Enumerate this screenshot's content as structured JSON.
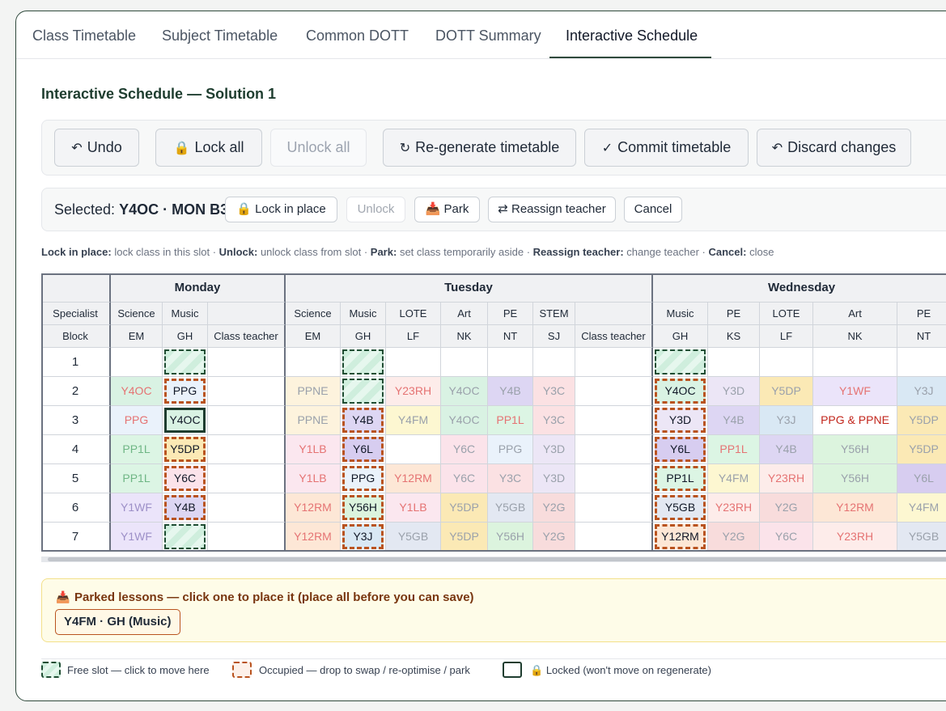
{
  "tabs": [
    "Class Timetable",
    "Subject Timetable",
    "Common DOTT",
    "DOTT Summary",
    "Interactive Schedule"
  ],
  "active_tab": "Interactive Schedule",
  "page_title": "Interactive Schedule — Solution 1",
  "toolbar": {
    "undo": "Undo",
    "undo_icon": "↶",
    "lock_all": "Lock all",
    "lock_icon": "🔒",
    "unlock_all": "Unlock all",
    "regenerate": "Re-generate timetable",
    "regenerate_icon": "↻",
    "commit": "Commit timetable",
    "commit_icon": "✓",
    "discard": "Discard changes",
    "discard_icon": "↶"
  },
  "selection": {
    "prefix": "Selected:",
    "value": "Y4OC · MON B3",
    "lock_in_place": "Lock in place",
    "unlock": "Unlock",
    "park": "Park",
    "park_icon": "📥",
    "reassign": "Reassign teacher",
    "reassign_icon": "⇄",
    "cancel": "Cancel"
  },
  "help": [
    {
      "term": "Lock in place:",
      "desc": "lock class in this slot"
    },
    {
      "term": "Unlock:",
      "desc": "unlock class from slot"
    },
    {
      "term": "Park:",
      "desc": "set class temporarily aside"
    },
    {
      "term": "Reassign teacher:",
      "desc": "change teacher"
    },
    {
      "term": "Cancel:",
      "desc": "close"
    }
  ],
  "grid": {
    "row_label_specialist": "Specialist",
    "row_label_block": "Block",
    "days": [
      {
        "name": "Monday",
        "columns": [
          {
            "subject": "Science",
            "teacher": "EM"
          },
          {
            "subject": "Music",
            "teacher": "GH"
          },
          {
            "subject": "",
            "teacher": "Class teacher"
          }
        ]
      },
      {
        "name": "Tuesday",
        "columns": [
          {
            "subject": "Science",
            "teacher": "EM"
          },
          {
            "subject": "Music",
            "teacher": "GH"
          },
          {
            "subject": "LOTE",
            "teacher": "LF"
          },
          {
            "subject": "Art",
            "teacher": "NK"
          },
          {
            "subject": "PE",
            "teacher": "NT"
          },
          {
            "subject": "STEM",
            "teacher": "SJ"
          },
          {
            "subject": "",
            "teacher": "Class teacher"
          }
        ]
      },
      {
        "name": "Wednesday",
        "columns": [
          {
            "subject": "Music",
            "teacher": "GH"
          },
          {
            "subject": "PE",
            "teacher": "KS"
          },
          {
            "subject": "LOTE",
            "teacher": "LF"
          },
          {
            "subject": "Art",
            "teacher": "NK"
          },
          {
            "subject": "PE",
            "teacher": "NT"
          }
        ]
      }
    ],
    "blocks": [
      "1",
      "2",
      "3",
      "4",
      "5",
      "6",
      "7"
    ],
    "cells": [
      [
        "",
        "FREE",
        "",
        "",
        "FREE",
        "",
        "",
        "",
        "",
        "",
        "FREE",
        "",
        "",
        "",
        ""
      ],
      [
        "Y4OC",
        "PPG",
        "",
        "PPNE",
        "FREE",
        "Y23RH",
        "Y4OC",
        "Y4B",
        "Y3C",
        "",
        "Y4OC",
        "Y3D",
        "Y5DP",
        "Y1WF",
        "Y3J"
      ],
      [
        "PPG",
        "Y4OC",
        "",
        "PPNE",
        "Y4B",
        "Y4FM",
        "Y4OC",
        "PP1L",
        "Y3C",
        "",
        "Y3D",
        "Y4B",
        "Y3J",
        "PPG & PPNE",
        "Y5DP"
      ],
      [
        "PP1L",
        "Y5DP",
        "",
        "Y1LB",
        "Y6L",
        "",
        "Y6C",
        "PPG",
        "Y3D",
        "",
        "Y6L",
        "PP1L",
        "Y4B",
        "Y56H",
        "Y5DP"
      ],
      [
        "PP1L",
        "Y6C",
        "",
        "Y1LB",
        "PPG",
        "Y12RM",
        "Y6C",
        "Y3C",
        "Y3D",
        "",
        "PP1L",
        "Y4FM",
        "Y23RH",
        "Y56H",
        "Y6L"
      ],
      [
        "Y1WF",
        "Y4B",
        "",
        "Y12RM",
        "Y56H",
        "Y1LB",
        "Y5DP",
        "Y5GB",
        "Y2G",
        "",
        "Y5GB",
        "Y23RH",
        "Y2G",
        "Y12RM",
        "Y4FM"
      ],
      [
        "Y1WF",
        "FREE",
        "",
        "Y12RM",
        "Y3J",
        "Y5GB",
        "Y5DP",
        "Y56H",
        "Y2G",
        "",
        "Y12RM",
        "Y2G",
        "Y6C",
        "Y23RH",
        "Y5GB"
      ]
    ],
    "selected_cell": "Y4OC · MON B3"
  },
  "class_colors": {
    "Y4OC": "#d9f2e3",
    "PPG": "#eaf2fb",
    "PPNE": "#fdf3dd",
    "Y23RH": "#fdecea",
    "Y4B": "#ddd6f3",
    "Y3C": "#fbe1e3",
    "Y3D": "#ece6f6",
    "Y5DP": "#fbe9b5",
    "Y1WF": "#ebe4fa",
    "Y3J": "#d9e8f4",
    "PP1L": "#dcf5e4",
    "Y4FM": "#fdf7d1",
    "Y1LB": "#fbe7ef",
    "Y6L": "#d7cdf0",
    "Y6C": "#fbe3ea",
    "Y12RM": "#fde7d6",
    "Y56H": "#dcf4de",
    "Y5GB": "#e3e8f2",
    "Y2G": "#f8dcdc",
    "PPG & PPNE": "#ffffff"
  },
  "parked": {
    "icon": "📥",
    "title": "Parked lessons — click one to place it (place all before you can save)",
    "items": [
      "Y4FM · GH (Music)"
    ]
  },
  "legend": {
    "free": "Free slot — click to move here",
    "occupied": "Occupied — drop to swap / re-optimise / park",
    "locked": "Locked (won't move on regenerate)",
    "lock_icon": "🔒"
  }
}
